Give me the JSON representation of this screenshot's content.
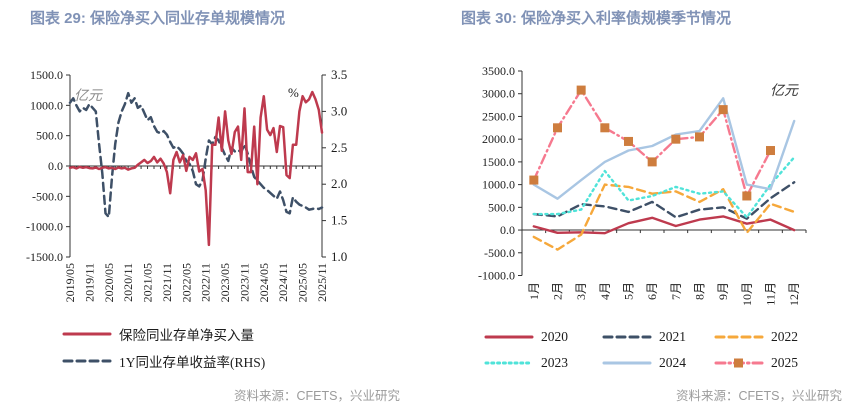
{
  "chart_data": [
    {
      "type": "line",
      "title": "图表 29: 保险净买入同业存单规模情况",
      "unit_left": "亿元",
      "unit_right": "%",
      "source": "资料来源：CFETS，兴业研究",
      "x_tick_labels": [
        "2019/05",
        "2019/11",
        "2020/05",
        "2020/11",
        "2021/05",
        "2021/11",
        "2022/05",
        "2022/11",
        "2023/05",
        "2023/11",
        "2024/05",
        "2024/11",
        "2025/05",
        "2025/11"
      ],
      "x_tick_step": 6,
      "axis_left": {
        "min": -1500,
        "max": 1500,
        "step": 500
      },
      "axis_right": {
        "min": 1.0,
        "max": 3.5,
        "step": 0.5
      },
      "legend_position": "bottom-left",
      "grid": false,
      "series": [
        {
          "name": "保险同业存单净买入量",
          "axis": "left",
          "color": "#BE3A4E",
          "style": "solid",
          "values": [
            -30,
            -20,
            -40,
            -15,
            -30,
            -20,
            -35,
            -40,
            -25,
            -50,
            -30,
            -20,
            -40,
            -30,
            -50,
            -25,
            -40,
            -30,
            -60,
            -40,
            -30,
            20,
            60,
            100,
            50,
            80,
            150,
            60,
            120,
            40,
            -100,
            -450,
            100,
            230,
            60,
            180,
            -80,
            150,
            100,
            210,
            -90,
            -50,
            -400,
            -1300,
            350,
            350,
            800,
            250,
            900,
            420,
            200,
            560,
            650,
            100,
            950,
            -100,
            -100,
            650,
            -300,
            800,
            1150,
            600,
            510,
            625,
            230,
            660,
            640,
            -150,
            -200,
            350,
            350,
            900,
            1150,
            1050,
            1100,
            1220,
            1100,
            925,
            550
          ]
        },
        {
          "name": "1Y同业存单收益率(RHS)",
          "axis": "right",
          "color": "#3E5067",
          "style": "dashed",
          "values": [
            3.12,
            3.18,
            3.08,
            3.0,
            3.05,
            3.02,
            3.1,
            3.05,
            3.0,
            2.55,
            2.15,
            1.6,
            1.55,
            2.1,
            2.55,
            2.85,
            3.0,
            3.1,
            3.25,
            3.12,
            3.18,
            3.05,
            3.08,
            2.98,
            2.88,
            2.92,
            2.8,
            2.72,
            2.7,
            2.73,
            2.68,
            2.58,
            2.5,
            2.52,
            2.48,
            2.42,
            2.32,
            2.28,
            2.18,
            2.0,
            1.97,
            2.05,
            2.35,
            2.6,
            2.55,
            2.65,
            2.6,
            2.5,
            2.4,
            2.32,
            2.5,
            2.45,
            2.47,
            2.44,
            2.55,
            2.42,
            2.25,
            2.1,
            2.05,
            2.0,
            1.95,
            1.92,
            1.88,
            1.84,
            1.8,
            1.9,
            1.78,
            1.62,
            1.6,
            1.82,
            1.76,
            1.72,
            1.7,
            1.68,
            1.65,
            1.66,
            1.67,
            1.66,
            1.68
          ]
        }
      ]
    },
    {
      "type": "line",
      "title": "图表 30: 保险净买入利率债规模季节情况",
      "unit": "亿元",
      "source": "资料来源：CFETS，兴业研究",
      "categories": [
        "1月",
        "2月",
        "3月",
        "4月",
        "5月",
        "6月",
        "7月",
        "8月",
        "9月",
        "10月",
        "11月",
        "12月"
      ],
      "axis": {
        "min": -1000,
        "max": 3500,
        "step": 500
      },
      "legend_position": "bottom",
      "grid": false,
      "series": [
        {
          "name": "2020",
          "color": "#BE3A4E",
          "style": "solid",
          "values": [
            80,
            -60,
            -50,
            -70,
            150,
            270,
            90,
            230,
            300,
            140,
            230,
            0
          ]
        },
        {
          "name": "2021",
          "color": "#3E5067",
          "style": "dashed",
          "values": [
            350,
            300,
            570,
            520,
            400,
            620,
            280,
            450,
            500,
            250,
            700,
            1050
          ]
        },
        {
          "name": "2022",
          "color": "#F6A83B",
          "style": "dashed",
          "values": [
            -150,
            -430,
            -100,
            1000,
            950,
            800,
            850,
            620,
            900,
            -60,
            580,
            400
          ]
        },
        {
          "name": "2023",
          "color": "#4FE3D9",
          "style": "dotted",
          "values": [
            350,
            350,
            450,
            1300,
            650,
            750,
            950,
            800,
            850,
            280,
            1000,
            1600
          ]
        },
        {
          "name": "2024",
          "color": "#A9C6E3",
          "style": "solid",
          "values": [
            1000,
            690,
            1100,
            1500,
            1750,
            1850,
            2100,
            2180,
            2900,
            1000,
            900,
            2400
          ]
        },
        {
          "name": "2025",
          "color": "#F6798F",
          "style": "dashdot",
          "marker": {
            "shape": "square",
            "color": "#CE7D3E"
          },
          "values": [
            1100,
            2250,
            3080,
            2250,
            1950,
            1500,
            2000,
            2050,
            2650,
            750,
            1750
          ]
        }
      ]
    }
  ]
}
